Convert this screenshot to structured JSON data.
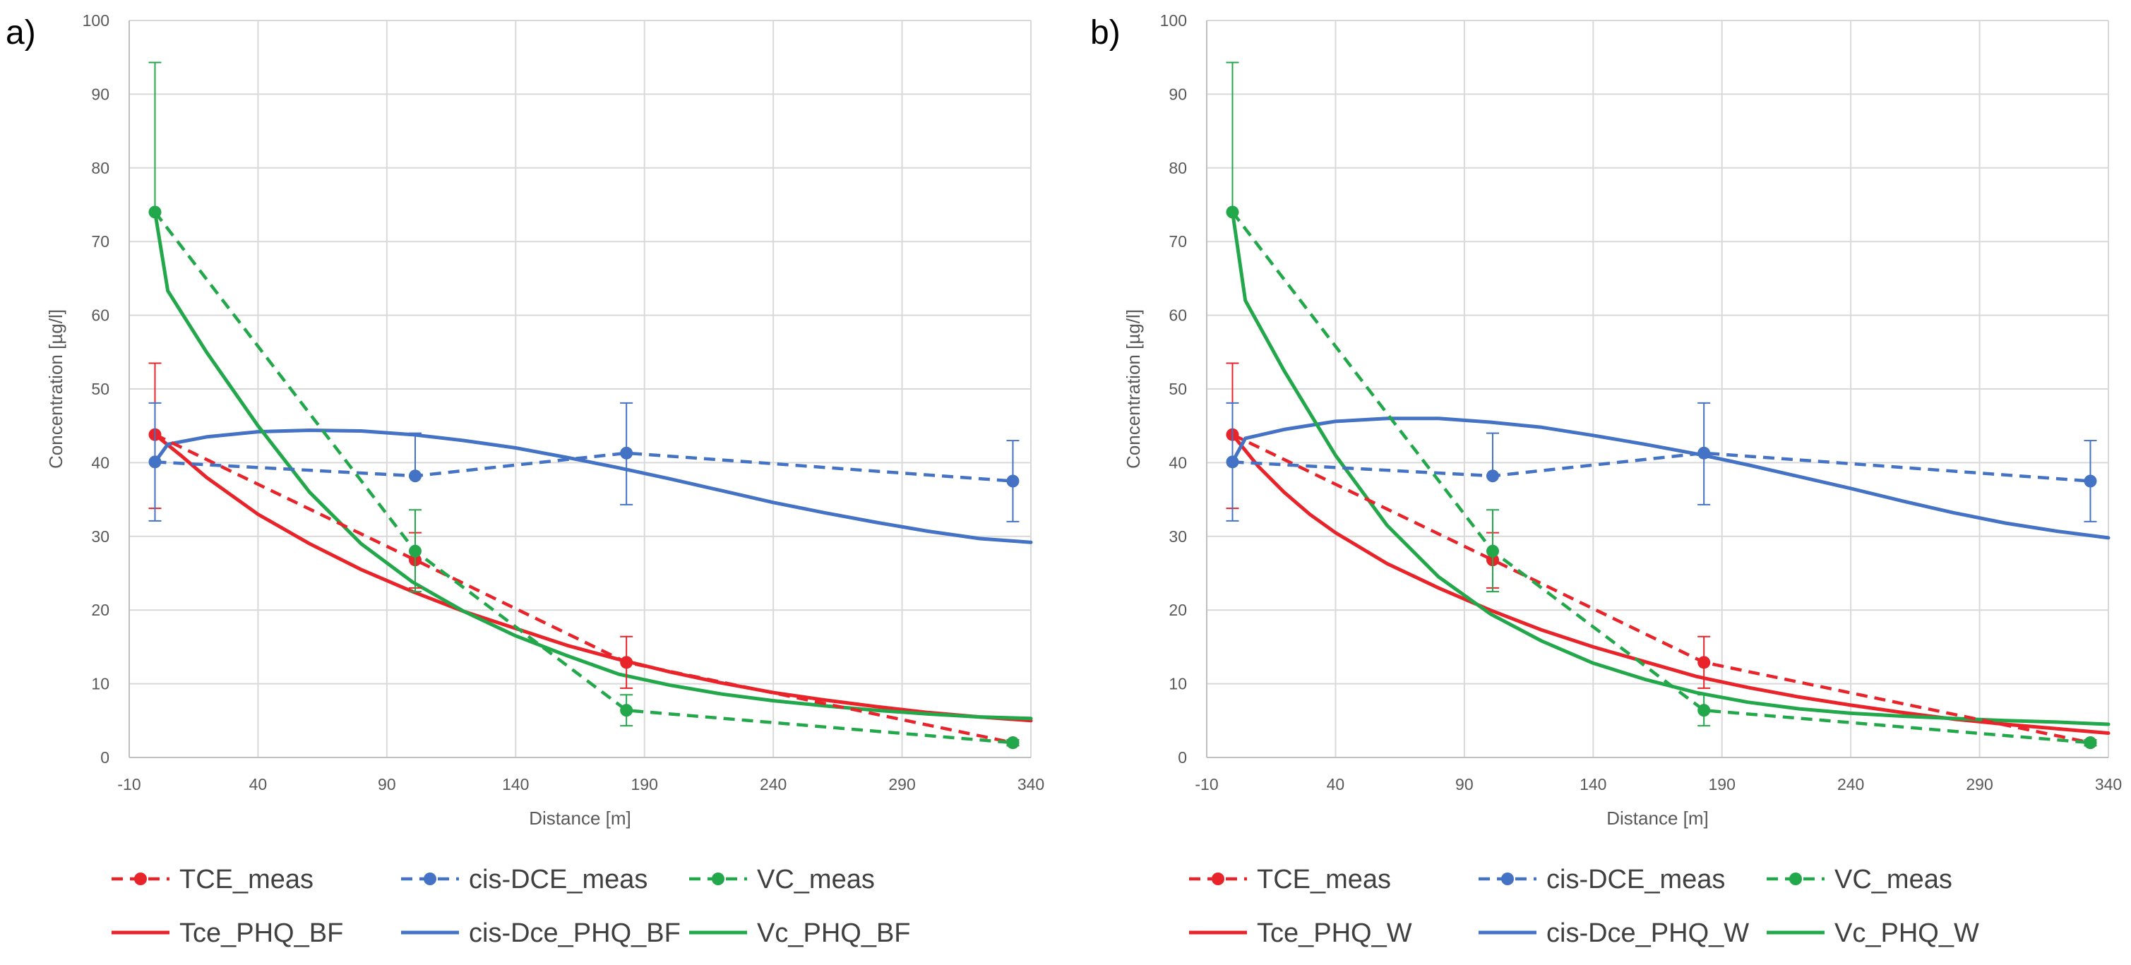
{
  "chart_data": [
    {
      "type": "line",
      "panel_label": "a)",
      "xlabel": "Distance [m]",
      "ylabel": "Concentration [µg/l]",
      "xlim": [
        -10,
        340
      ],
      "ylim": [
        0,
        100
      ],
      "xticks": [
        "-10",
        "40",
        "90",
        "140",
        "190",
        "240",
        "290",
        "340"
      ],
      "yticks": [
        "0",
        "10",
        "20",
        "30",
        "40",
        "50",
        "60",
        "70",
        "80",
        "90",
        "100"
      ],
      "grid": true,
      "legend_position": "bottom",
      "series": [
        {
          "name": "TCE_meas",
          "style": "dashed-markers",
          "color": "#e8242a",
          "x": [
            0,
            101,
            183,
            333
          ],
          "y": [
            43.8,
            26.8,
            12.9,
            2.0
          ],
          "err_low": [
            10.0,
            3.8,
            3.5,
            0.4
          ],
          "err_high": [
            9.7,
            3.7,
            3.5,
            0.4
          ]
        },
        {
          "name": "cis-DCE_meas",
          "style": "dashed-markers",
          "color": "#4472c4",
          "x": [
            0,
            101,
            183,
            333
          ],
          "y": [
            40.1,
            38.2,
            41.3,
            37.5
          ],
          "err_low": [
            8.0,
            0,
            7.0,
            5.5
          ],
          "err_high": [
            8.0,
            5.8,
            6.8,
            5.5
          ]
        },
        {
          "name": "VC_meas",
          "style": "dashed-markers",
          "color": "#22a84a",
          "x": [
            0,
            101,
            183,
            333
          ],
          "y": [
            74.0,
            28.0,
            6.4,
            2.0
          ],
          "err_low": [
            0,
            5.5,
            2.1,
            0.4
          ],
          "err_high": [
            20.3,
            5.6,
            2.1,
            0.4
          ]
        },
        {
          "name": "Tce_PHQ_BF",
          "style": "solid",
          "color": "#e8242a",
          "x": [
            0,
            10,
            20,
            30,
            40,
            60,
            80,
            100,
            120,
            140,
            160,
            180,
            200,
            220,
            240,
            260,
            280,
            300,
            320,
            340
          ],
          "y": [
            43.8,
            41.0,
            38.0,
            35.5,
            33.0,
            29.0,
            25.5,
            22.5,
            19.8,
            17.5,
            15.2,
            13.3,
            11.6,
            10.1,
            8.8,
            7.8,
            6.9,
            6.1,
            5.5,
            5.0
          ]
        },
        {
          "name": "cis-Dce_PHQ_BF",
          "style": "solid",
          "color": "#4472c4",
          "x": [
            0,
            5,
            20,
            40,
            60,
            80,
            100,
            120,
            140,
            160,
            180,
            200,
            220,
            240,
            260,
            280,
            300,
            320,
            340
          ],
          "y": [
            40.1,
            42.5,
            43.5,
            44.2,
            44.4,
            44.3,
            43.8,
            43.0,
            42.0,
            40.7,
            39.3,
            37.8,
            36.2,
            34.6,
            33.2,
            31.9,
            30.7,
            29.7,
            29.2
          ]
        },
        {
          "name": "Vc_PHQ_BF",
          "style": "solid",
          "color": "#22a84a",
          "x": [
            0,
            5,
            20,
            40,
            60,
            80,
            100,
            120,
            140,
            160,
            180,
            200,
            220,
            240,
            260,
            280,
            300,
            320,
            340
          ],
          "y": [
            74.0,
            63.3,
            55.0,
            45.0,
            36.0,
            29.0,
            23.8,
            19.8,
            16.5,
            13.8,
            11.3,
            9.8,
            8.6,
            7.7,
            7.0,
            6.4,
            5.9,
            5.5,
            5.3
          ]
        }
      ]
    },
    {
      "type": "line",
      "panel_label": "b)",
      "xlabel": "Distance [m]",
      "ylabel": "Concentration [µg/l]",
      "xlim": [
        -10,
        340
      ],
      "ylim": [
        0,
        100
      ],
      "xticks": [
        "-10",
        "40",
        "90",
        "140",
        "190",
        "240",
        "290",
        "340"
      ],
      "yticks": [
        "0",
        "10",
        "20",
        "30",
        "40",
        "50",
        "60",
        "70",
        "80",
        "90",
        "100"
      ],
      "grid": true,
      "legend_position": "bottom",
      "series": [
        {
          "name": "TCE_meas",
          "style": "dashed-markers",
          "color": "#e8242a",
          "x": [
            0,
            101,
            183,
            333
          ],
          "y": [
            43.8,
            26.8,
            12.9,
            2.0
          ],
          "err_low": [
            10.0,
            3.8,
            3.5,
            0.4
          ],
          "err_high": [
            9.7,
            3.7,
            3.5,
            0.4
          ]
        },
        {
          "name": "cis-DCE_meas",
          "style": "dashed-markers",
          "color": "#4472c4",
          "x": [
            0,
            101,
            183,
            333
          ],
          "y": [
            40.1,
            38.2,
            41.3,
            37.5
          ],
          "err_low": [
            8.0,
            0,
            7.0,
            5.5
          ],
          "err_high": [
            8.0,
            5.8,
            6.8,
            5.5
          ]
        },
        {
          "name": "VC_meas",
          "style": "dashed-markers",
          "color": "#22a84a",
          "x": [
            0,
            101,
            183,
            333
          ],
          "y": [
            74.0,
            28.0,
            6.4,
            2.0
          ],
          "err_low": [
            0,
            5.5,
            2.1,
            0.4
          ],
          "err_high": [
            20.3,
            5.6,
            2.1,
            0.4
          ]
        },
        {
          "name": "Tce_PHQ_W",
          "style": "solid",
          "color": "#e8242a",
          "x": [
            0,
            10,
            20,
            30,
            40,
            60,
            80,
            100,
            120,
            140,
            160,
            180,
            200,
            220,
            240,
            260,
            280,
            300,
            320,
            340
          ],
          "y": [
            43.8,
            39.5,
            36.0,
            33.0,
            30.5,
            26.3,
            23.0,
            20.0,
            17.3,
            15.0,
            13.0,
            11.0,
            9.5,
            8.2,
            7.1,
            6.1,
            5.2,
            4.5,
            3.9,
            3.3
          ]
        },
        {
          "name": "cis-Dce_PHQ_W",
          "style": "solid",
          "color": "#4472c4",
          "x": [
            0,
            5,
            20,
            40,
            60,
            80,
            100,
            120,
            140,
            160,
            180,
            200,
            220,
            240,
            260,
            280,
            300,
            320,
            340
          ],
          "y": [
            40.1,
            43.3,
            44.5,
            45.6,
            46.0,
            46.0,
            45.5,
            44.8,
            43.7,
            42.5,
            41.2,
            39.7,
            38.1,
            36.5,
            34.8,
            33.2,
            31.8,
            30.7,
            29.8
          ]
        },
        {
          "name": "Vc_PHQ_W",
          "style": "solid",
          "color": "#22a84a",
          "x": [
            0,
            5,
            20,
            40,
            60,
            80,
            100,
            120,
            140,
            160,
            180,
            200,
            220,
            240,
            260,
            280,
            300,
            320,
            340
          ],
          "y": [
            74.0,
            62.0,
            52.5,
            41.0,
            31.5,
            24.5,
            19.5,
            15.8,
            12.8,
            10.6,
            8.8,
            7.5,
            6.6,
            6.0,
            5.6,
            5.3,
            5.0,
            4.8,
            4.5
          ]
        }
      ]
    }
  ]
}
